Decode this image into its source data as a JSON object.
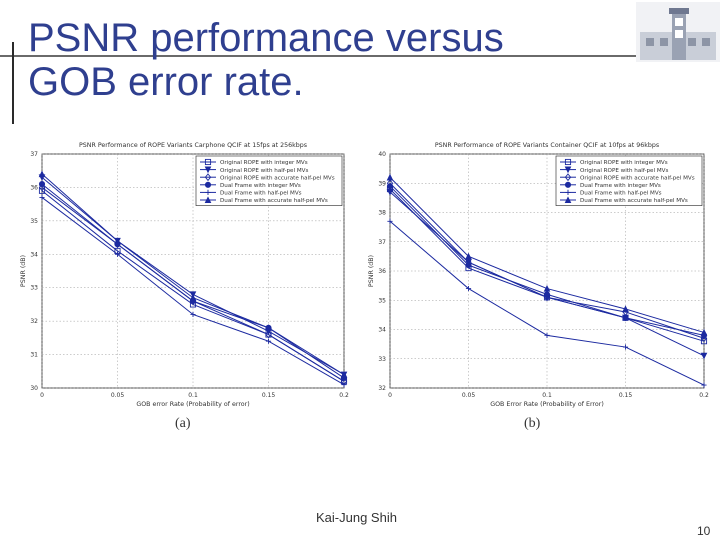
{
  "slide": {
    "title_line1": "PSNR performance versus",
    "title_line2": "GOB error rate.",
    "author": "Kai-Jung Shih",
    "page_number": "10",
    "colors": {
      "title": "#2f3f8f",
      "series": "#1c2aa0",
      "rule": "#6a6a6a"
    }
  },
  "logo": {
    "icon": "building-logo-icon"
  },
  "chart_data": [
    {
      "type": "line",
      "caption": "(a)",
      "title": "PSNR Performance of ROPE Variants    Carphone QCIF at 15fps at 256kbps",
      "xlabel": "GOB error Rate (Probability of error)",
      "ylabel": "PSNR (dB)",
      "xlim": [
        0,
        0.2
      ],
      "ylim": [
        30,
        37
      ],
      "xticks": [
        0,
        0.05,
        0.1,
        0.15,
        0.2
      ],
      "xtick_labels": [
        "0",
        "0.05",
        "0.1",
        "0.15",
        "0.2"
      ],
      "yticks": [
        30,
        31,
        32,
        33,
        34,
        35,
        36,
        37
      ],
      "grid": true,
      "legend_position": "top-right",
      "x": [
        0,
        0.05,
        0.1,
        0.15,
        0.2
      ],
      "series": [
        {
          "name": "Original ROPE with integer MVs",
          "marker": "square",
          "values": [
            35.9,
            34.1,
            32.5,
            31.6,
            30.2
          ]
        },
        {
          "name": "Original ROPE with half-pel MVs",
          "marker": "triangle-down",
          "values": [
            36.3,
            34.4,
            32.8,
            31.7,
            30.4
          ]
        },
        {
          "name": "Original ROPE with accurate half-pel MVs",
          "marker": "diamond",
          "values": [
            36.0,
            34.3,
            32.6,
            31.6,
            30.2
          ]
        },
        {
          "name": "Dual Frame with integer MVs",
          "marker": "circle",
          "values": [
            36.1,
            34.3,
            32.6,
            31.8,
            30.3
          ]
        },
        {
          "name": "Dual Frame with half-pel MVs",
          "marker": "plus",
          "values": [
            35.7,
            34.0,
            32.2,
            31.4,
            30.1
          ]
        },
        {
          "name": "Dual Frame with accurate half-pel MVs",
          "marker": "triangle-up",
          "values": [
            36.4,
            34.4,
            32.7,
            31.8,
            30.4
          ]
        }
      ]
    },
    {
      "type": "line",
      "caption": "(b)",
      "title": "PSNR Performance of ROPE Variants    Container QCIF at 10fps at 96kbps",
      "xlabel": "GOB Error Rate (Probability of Error)",
      "ylabel": "PSNR (dB)",
      "xlim": [
        0,
        0.2
      ],
      "ylim": [
        32,
        40
      ],
      "xticks": [
        0,
        0.05,
        0.1,
        0.15,
        0.2
      ],
      "xtick_labels": [
        "0",
        "0.05",
        "0.1",
        "0.15",
        "0.2"
      ],
      "yticks": [
        32,
        33,
        34,
        35,
        36,
        37,
        38,
        39,
        40
      ],
      "grid": true,
      "legend_position": "top-right",
      "x": [
        0,
        0.05,
        0.1,
        0.15,
        0.2
      ],
      "series": [
        {
          "name": "Original ROPE with integer MVs",
          "marker": "square",
          "values": [
            38.8,
            36.1,
            35.1,
            34.4,
            33.6
          ]
        },
        {
          "name": "Original ROPE with half-pel MVs",
          "marker": "triangle-down",
          "values": [
            38.7,
            36.3,
            35.1,
            34.4,
            33.1
          ]
        },
        {
          "name": "Original ROPE with accurate half-pel MVs",
          "marker": "diamond",
          "values": [
            39.0,
            36.3,
            35.1,
            34.6,
            33.7
          ]
        },
        {
          "name": "Dual Frame with integer MVs",
          "marker": "circle",
          "values": [
            38.9,
            36.2,
            35.2,
            34.4,
            33.8
          ]
        },
        {
          "name": "Dual Frame with half-pel MVs",
          "marker": "plus",
          "values": [
            37.7,
            35.4,
            33.8,
            33.4,
            32.1
          ]
        },
        {
          "name": "Dual Frame with accurate half-pel MVs",
          "marker": "triangle-up",
          "values": [
            39.2,
            36.5,
            35.4,
            34.7,
            33.9
          ]
        }
      ]
    }
  ]
}
